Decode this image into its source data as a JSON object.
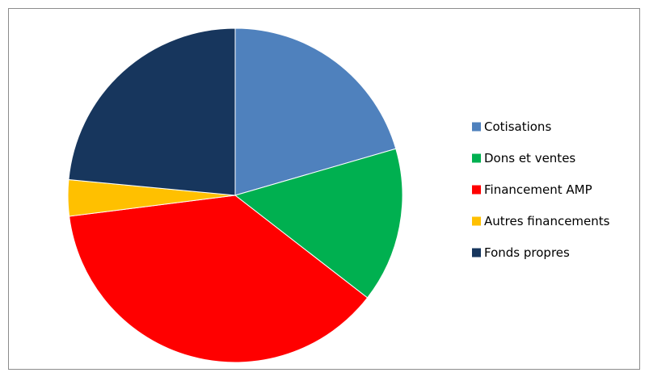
{
  "chart_data": {
    "type": "pie",
    "title": "",
    "legend_position": "right",
    "start_angle_deg": 0,
    "direction": "clockwise",
    "slices": [
      {
        "label": "Cotisations",
        "value": 20.5,
        "color": "#4f81bd"
      },
      {
        "label": "Dons et ventes",
        "value": 15.0,
        "color": "#00b050"
      },
      {
        "label": "Financement AMP",
        "value": 37.5,
        "color": "#ff0000"
      },
      {
        "label": "Autres financements",
        "value": 3.5,
        "color": "#ffc000"
      },
      {
        "label": "Fonds propres",
        "value": 23.5,
        "color": "#17365d"
      }
    ]
  }
}
